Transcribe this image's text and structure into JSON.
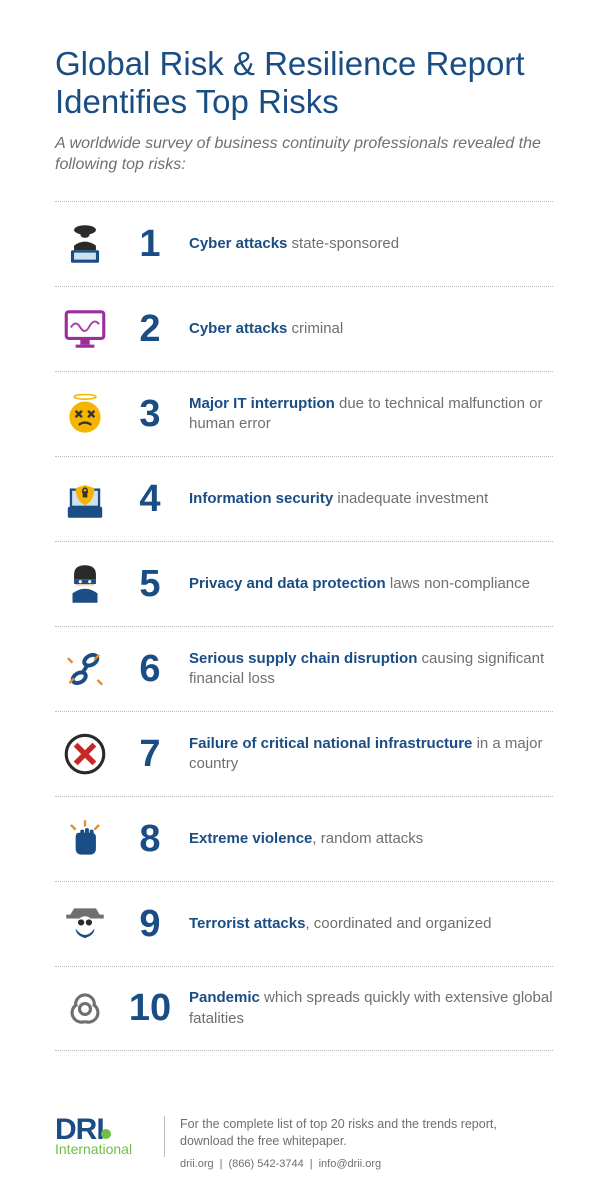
{
  "colors": {
    "primary": "#1a4d84",
    "text": "#6f6f6f",
    "dotted": "#bcbcbc",
    "green": "#6fbf44",
    "purple": "#9b2f9b",
    "yellow": "#f5b400",
    "red": "#c62828",
    "orange": "#e68a2e"
  },
  "title": "Global Risk & Resilience Report Identifies Top Risks",
  "subtitle": "A worldwide survey of business continuity professionals revealed the following top risks:",
  "risks": [
    {
      "n": 1,
      "icon": "hacker",
      "bold": "Cyber attacks",
      "rest": " state-sponsored"
    },
    {
      "n": 2,
      "icon": "monitor",
      "bold": "Cyber attacks",
      "rest": " criminal"
    },
    {
      "n": 3,
      "icon": "dizzy",
      "bold": "Major IT interruption",
      "rest": " due to technical malfunction or human error"
    },
    {
      "n": 4,
      "icon": "shield",
      "bold": "Information security",
      "rest": " inadequate investment"
    },
    {
      "n": 5,
      "icon": "thief",
      "bold": "Privacy and data protection",
      "rest": " laws non-compliance"
    },
    {
      "n": 6,
      "icon": "chain",
      "bold": "Serious supply chain disruption",
      "rest": " causing significant financial loss"
    },
    {
      "n": 7,
      "icon": "cross",
      "bold": "Failure of critical national infrastructure",
      "rest": " in a major country"
    },
    {
      "n": 8,
      "icon": "fist",
      "bold": "Extreme violence",
      "rest": ", random attacks"
    },
    {
      "n": 9,
      "icon": "terrorist",
      "bold": "Terrorist attacks",
      "rest": ", coordinated and organized"
    },
    {
      "n": 10,
      "icon": "biohazard",
      "bold": "Pandemic",
      "rest": " which spreads quickly with extensive global fatalities"
    }
  ],
  "footer": {
    "logo_main": "DRI",
    "logo_sub": "International",
    "desc": "For the complete list of top 20 risks and the trends report, download the free whitepaper.",
    "site": "drii.org",
    "phone": "(866) 542-3744",
    "email": "info@drii.org"
  }
}
